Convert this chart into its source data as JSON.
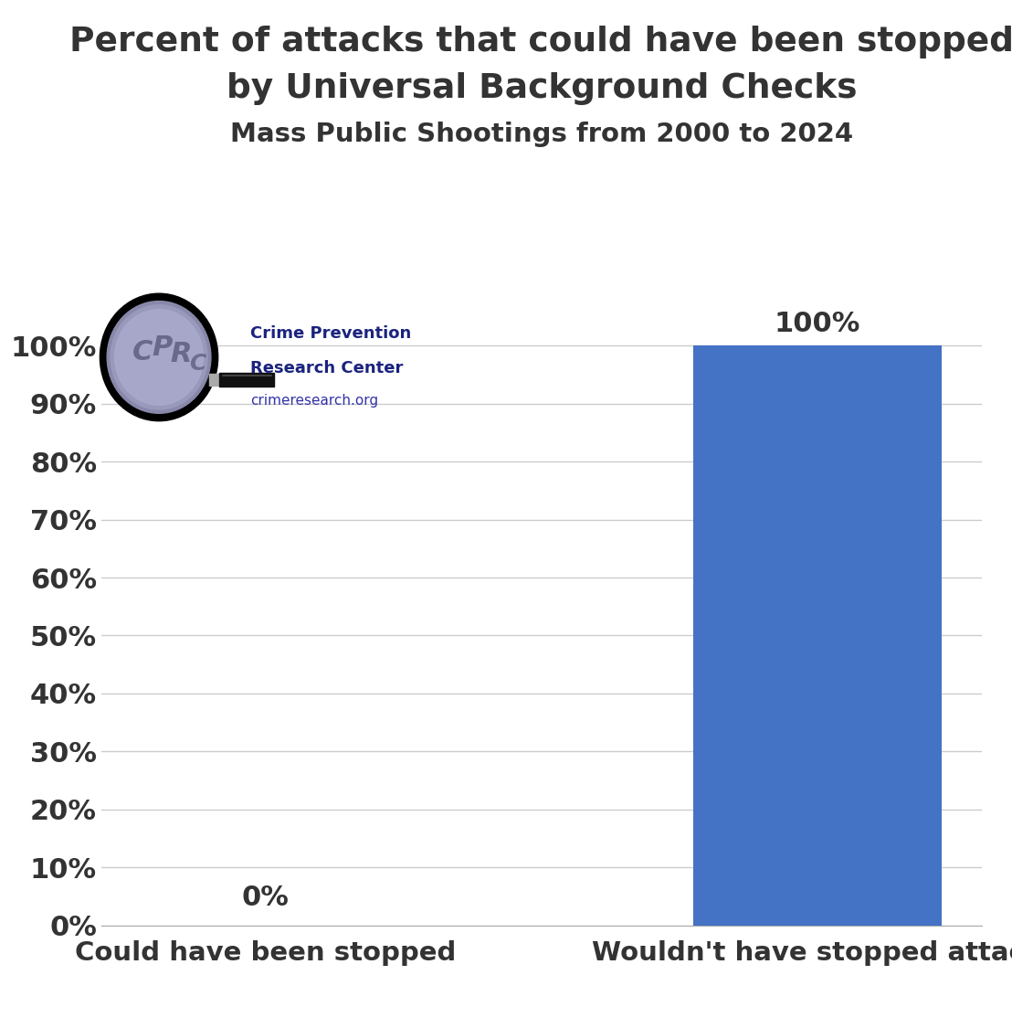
{
  "title_line1": "Percent of attacks that could have been stopped",
  "title_line2": "by Universal Background Checks",
  "subtitle": "Mass Public Shootings from 2000 to 2024",
  "categories": [
    "Could have been stopped",
    "Wouldn't have stopped attack"
  ],
  "values": [
    0,
    100
  ],
  "bar_color": "#4472C4",
  "value_labels": [
    "0%",
    "100%"
  ],
  "ytick_labels": [
    "0%",
    "10%",
    "20%",
    "30%",
    "40%",
    "50%",
    "60%",
    "70%",
    "80%",
    "90%",
    "100%"
  ],
  "ytick_values": [
    0,
    10,
    20,
    30,
    40,
    50,
    60,
    70,
    80,
    90,
    100
  ],
  "ylim": [
    0,
    110
  ],
  "background_color": "#ffffff",
  "title_color": "#333333",
  "subtitle_color": "#333333",
  "axis_label_color": "#333333",
  "value_label_color": "#333333",
  "grid_color": "#cccccc",
  "cprc_bold_color": "#1a237e",
  "cprc_url_color": "#3333aa"
}
